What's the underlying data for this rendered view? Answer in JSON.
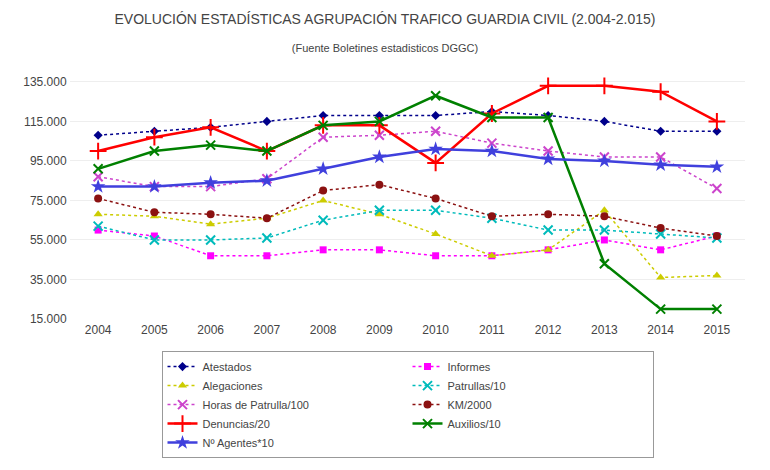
{
  "chart_data": {
    "type": "line",
    "title": "EVOLUCIÓN ESTADÍSTICAS AGRUPACIÓN TRAFICO GUARDIA CIVIL (2.004-2.015)",
    "subtitle": "(Fuente Boletines estadisticos DGGC)",
    "x": [
      2004,
      2005,
      2006,
      2007,
      2008,
      2009,
      2010,
      2011,
      2012,
      2013,
      2014,
      2015
    ],
    "xlim": [
      2003.5,
      2015.5
    ],
    "xticks": [
      2004,
      2005,
      2006,
      2007,
      2008,
      2009,
      2010,
      2011,
      2012,
      2013,
      2014,
      2015
    ],
    "ylim": [
      15000,
      140000
    ],
    "yticks": [
      {
        "value": 15000,
        "label": "15.000"
      },
      {
        "value": 35000,
        "label": "35.000"
      },
      {
        "value": 55000,
        "label": "55.000"
      },
      {
        "value": 75000,
        "label": "75.000"
      },
      {
        "value": 95000,
        "label": "95.000"
      },
      {
        "value": 115000,
        "label": "115.000"
      },
      {
        "value": 135000,
        "label": "135.000"
      }
    ],
    "grid": "y",
    "legend": "bottom",
    "series": [
      {
        "name": "Atestados",
        "color": "#00008B",
        "line_style": "dotted",
        "marker": "diamond",
        "values": [
          108000,
          110000,
          112000,
          115000,
          118000,
          118000,
          118000,
          120000,
          118000,
          115000,
          110000,
          110000
        ]
      },
      {
        "name": "Informes",
        "color": "#FF00FF",
        "line_style": "dotted",
        "marker": "square",
        "values": [
          60000,
          57000,
          47000,
          47000,
          50000,
          50000,
          47000,
          47000,
          50000,
          55000,
          50000,
          57000
        ]
      },
      {
        "name": "Alegaciones",
        "color": "#CCCC00",
        "line_style": "dotted",
        "marker": "triangle-up",
        "values": [
          68000,
          67000,
          63000,
          66000,
          75000,
          68000,
          58000,
          47000,
          50000,
          70000,
          36000,
          37000
        ]
      },
      {
        "name": "Patrullas/10",
        "color": "#00BBBB",
        "line_style": "dotted",
        "marker": "x",
        "values": [
          62000,
          55000,
          55000,
          56000,
          65000,
          70000,
          70000,
          66000,
          60000,
          60000,
          58000,
          56000
        ]
      },
      {
        "name": "Horas de Patrulla/100",
        "color": "#CC44CC",
        "line_style": "dotted",
        "marker": "x",
        "values": [
          87000,
          82000,
          82000,
          86000,
          107000,
          108000,
          110000,
          104000,
          100000,
          97000,
          97000,
          81000
        ]
      },
      {
        "name": "KM/2000",
        "color": "#8B1111",
        "line_style": "dotted",
        "marker": "circle",
        "values": [
          76000,
          69000,
          68000,
          66000,
          80000,
          83000,
          76000,
          67000,
          68000,
          67000,
          61000,
          57000
        ]
      },
      {
        "name": "Denuncias/20",
        "color": "#FF0000",
        "line_style": "solid",
        "marker": "plus",
        "values": [
          100000,
          107000,
          112000,
          100000,
          113000,
          113000,
          94000,
          119000,
          133000,
          133000,
          130000,
          115000
        ]
      },
      {
        "name": "Auxilios/10",
        "color": "#008000",
        "line_style": "solid",
        "marker": "x",
        "values": [
          91000,
          100000,
          103000,
          100000,
          113000,
          115000,
          128000,
          117000,
          117000,
          43000,
          20000,
          20000
        ]
      },
      {
        "name": "Nº Agentes*10",
        "color": "#4040DD",
        "line_style": "solid",
        "marker": "star",
        "values": [
          82000,
          82000,
          84000,
          85000,
          91000,
          97000,
          101000,
          100000,
          96000,
          95000,
          93000,
          92000
        ]
      }
    ]
  }
}
